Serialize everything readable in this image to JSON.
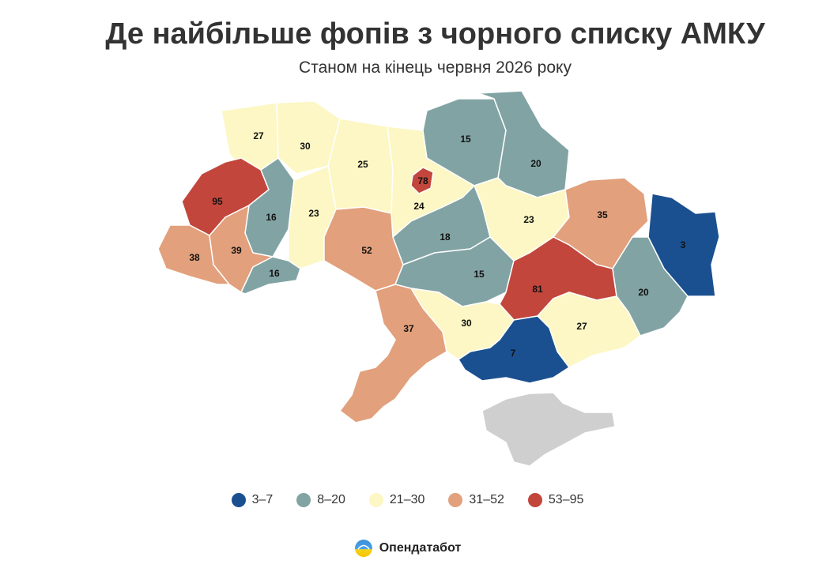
{
  "title": "Де найбільше фопів з чорного списку АМКУ",
  "subtitle": "Станом на кінець червня 2026 року",
  "colors": {
    "c1": "#1a5090",
    "c2": "#82a3a4",
    "c3": "#fcf7c4",
    "c4": "#e2a07c",
    "c5": "#c2463c",
    "crimea": "#cfcfcf"
  },
  "legend": [
    {
      "label": "3–7",
      "color": "#1a5090"
    },
    {
      "label": "8–20",
      "color": "#82a3a4"
    },
    {
      "label": "21–30",
      "color": "#fcf7c4"
    },
    {
      "label": "31–52",
      "color": "#e2a07c"
    },
    {
      "label": "53–95",
      "color": "#c2463c"
    }
  ],
  "brand": {
    "name": "Опендатабот",
    "icon": "opendatabot-logo-icon"
  },
  "regions": [
    {
      "id": "volyn",
      "value": "27",
      "cls": "c3"
    },
    {
      "id": "rivne",
      "value": "30",
      "cls": "c3"
    },
    {
      "id": "zhytomyr",
      "value": "25",
      "cls": "c3"
    },
    {
      "id": "kyiv-oblast",
      "value": "24",
      "cls": "c3"
    },
    {
      "id": "kyiv-city",
      "value": "78",
      "cls": "c5"
    },
    {
      "id": "chernihiv",
      "value": "15",
      "cls": "c2"
    },
    {
      "id": "sumy",
      "value": "20",
      "cls": "c2"
    },
    {
      "id": "lviv",
      "value": "95",
      "cls": "c5"
    },
    {
      "id": "ternopil",
      "value": "16",
      "cls": "c2"
    },
    {
      "id": "khmelnytskyi",
      "value": "23",
      "cls": "c3"
    },
    {
      "id": "zakarpattia",
      "value": "38",
      "cls": "c4"
    },
    {
      "id": "ivano-frankivsk",
      "value": "39",
      "cls": "c4"
    },
    {
      "id": "chernivtsi",
      "value": "16",
      "cls": "c2"
    },
    {
      "id": "vinnytsia",
      "value": "52",
      "cls": "c4"
    },
    {
      "id": "cherkasy",
      "value": "18",
      "cls": "c2"
    },
    {
      "id": "poltava",
      "value": "23",
      "cls": "c3"
    },
    {
      "id": "kharkiv",
      "value": "35",
      "cls": "c4"
    },
    {
      "id": "luhansk",
      "value": "3",
      "cls": "c1"
    },
    {
      "id": "kirovohrad",
      "value": "15",
      "cls": "c2"
    },
    {
      "id": "dnipro",
      "value": "81",
      "cls": "c5"
    },
    {
      "id": "donetsk",
      "value": "20",
      "cls": "c2"
    },
    {
      "id": "odesa",
      "value": "37",
      "cls": "c4"
    },
    {
      "id": "mykolaiv",
      "value": "30",
      "cls": "c3"
    },
    {
      "id": "zaporizhzhia",
      "value": "27",
      "cls": "c3"
    },
    {
      "id": "kherson",
      "value": "7",
      "cls": "c1"
    },
    {
      "id": "crimea",
      "value": "",
      "cls": "crimea"
    }
  ]
}
